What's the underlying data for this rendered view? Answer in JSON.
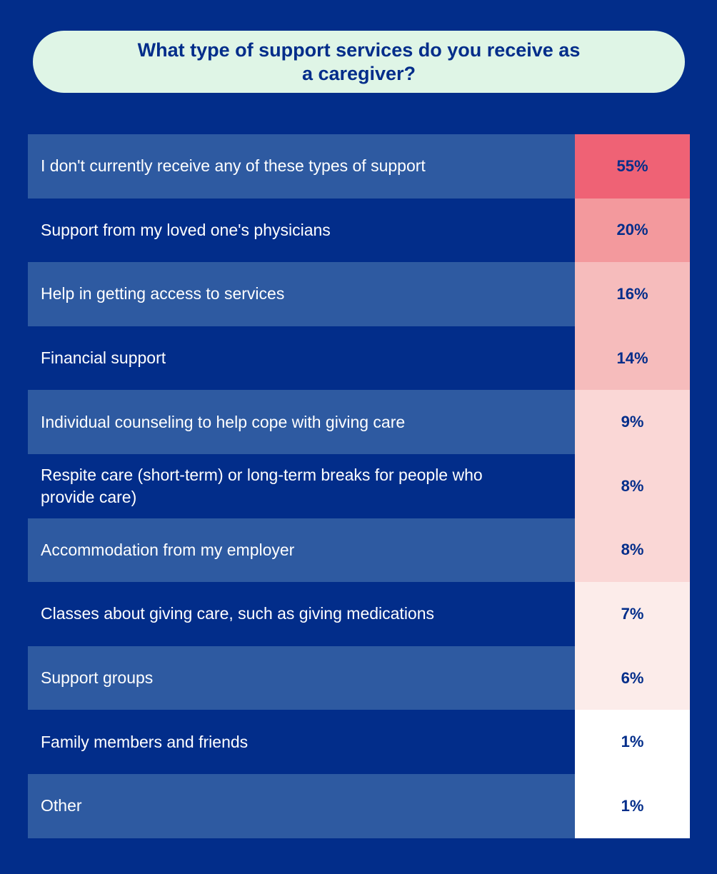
{
  "title": "What type of support services do you receive as a caregiver?",
  "chart_data": {
    "type": "table",
    "title": "What type of support services do you receive as a caregiver?",
    "rows": [
      {
        "label": "I don't currently receive any of these types of support",
        "value": 55,
        "display": "55%",
        "color": "#ef6275"
      },
      {
        "label": "Support from my loved one's physicians",
        "value": 20,
        "display": "20%",
        "color": "#f3999d"
      },
      {
        "label": "Help in getting access to services",
        "value": 16,
        "display": "16%",
        "color": "#f6bcbc"
      },
      {
        "label": "Financial support",
        "value": 14,
        "display": "14%",
        "color": "#f6bcbc"
      },
      {
        "label": "Individual counseling to help cope with giving care",
        "value": 9,
        "display": "9%",
        "color": "#fad7d6"
      },
      {
        "label": "Respite care (short-term) or long-term breaks for people who provide care)",
        "value": 8,
        "display": "8%",
        "color": "#fad7d6"
      },
      {
        "label": "Accommodation from my employer",
        "value": 8,
        "display": "8%",
        "color": "#fad7d6"
      },
      {
        "label": "Classes about giving care, such as giving medications",
        "value": 7,
        "display": "7%",
        "color": "#fcecea"
      },
      {
        "label": "Support groups",
        "value": 6,
        "display": "6%",
        "color": "#fcecea"
      },
      {
        "label": "Family members and friends",
        "value": 1,
        "display": "1%",
        "color": "#ffffff"
      },
      {
        "label": "Other",
        "value": 1,
        "display": "1%",
        "color": "#ffffff"
      }
    ]
  }
}
